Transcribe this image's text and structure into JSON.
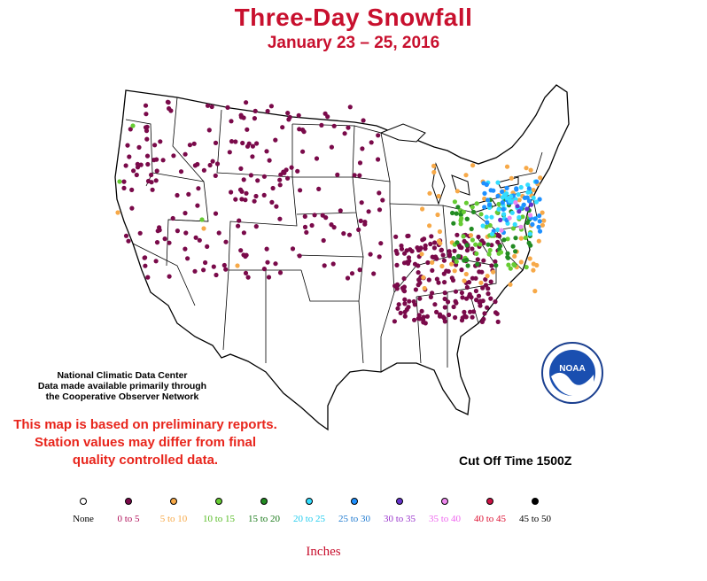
{
  "header": {
    "title": "Three-Day Snowfall",
    "subtitle": "January 23 – 25, 2016"
  },
  "credits": {
    "line1": "National Climatic Data Center",
    "line2": "Data made available primarily through",
    "line3": "the Cooperative Observer Network"
  },
  "notice": {
    "line1": "This map is based on preliminary reports.",
    "line2": "Station values may differ from final",
    "line3": "quality controlled data."
  },
  "cutoff": "Cut Off Time 1500Z",
  "logo_text": "NOAA",
  "legend": {
    "unit_label": "Inches",
    "items": [
      {
        "label": "None",
        "color": "#ffffff",
        "text_color": "#000000"
      },
      {
        "label": "0 to 5",
        "color": "#7a0a4a",
        "text_color": "#b0105a"
      },
      {
        "label": "5 to 10",
        "color": "#f7a948",
        "text_color": "#f7a948"
      },
      {
        "label": "10 to 15",
        "color": "#66cc33",
        "text_color": "#55bb22"
      },
      {
        "label": "15 to 20",
        "color": "#228b22",
        "text_color": "#1a7a1a"
      },
      {
        "label": "20 to 25",
        "color": "#33ddff",
        "text_color": "#22ccee"
      },
      {
        "label": "25 to 30",
        "color": "#1e90ff",
        "text_color": "#1e7ad0"
      },
      {
        "label": "30 to 35",
        "color": "#6633cc",
        "text_color": "#9933cc"
      },
      {
        "label": "35 to 40",
        "color": "#ee88ee",
        "text_color": "#ee66ee"
      },
      {
        "label": "40 to 45",
        "color": "#cc1144",
        "text_color": "#dd1133"
      },
      {
        "label": "45 to 50",
        "color": "#000000",
        "text_color": "#000000"
      }
    ]
  }
}
